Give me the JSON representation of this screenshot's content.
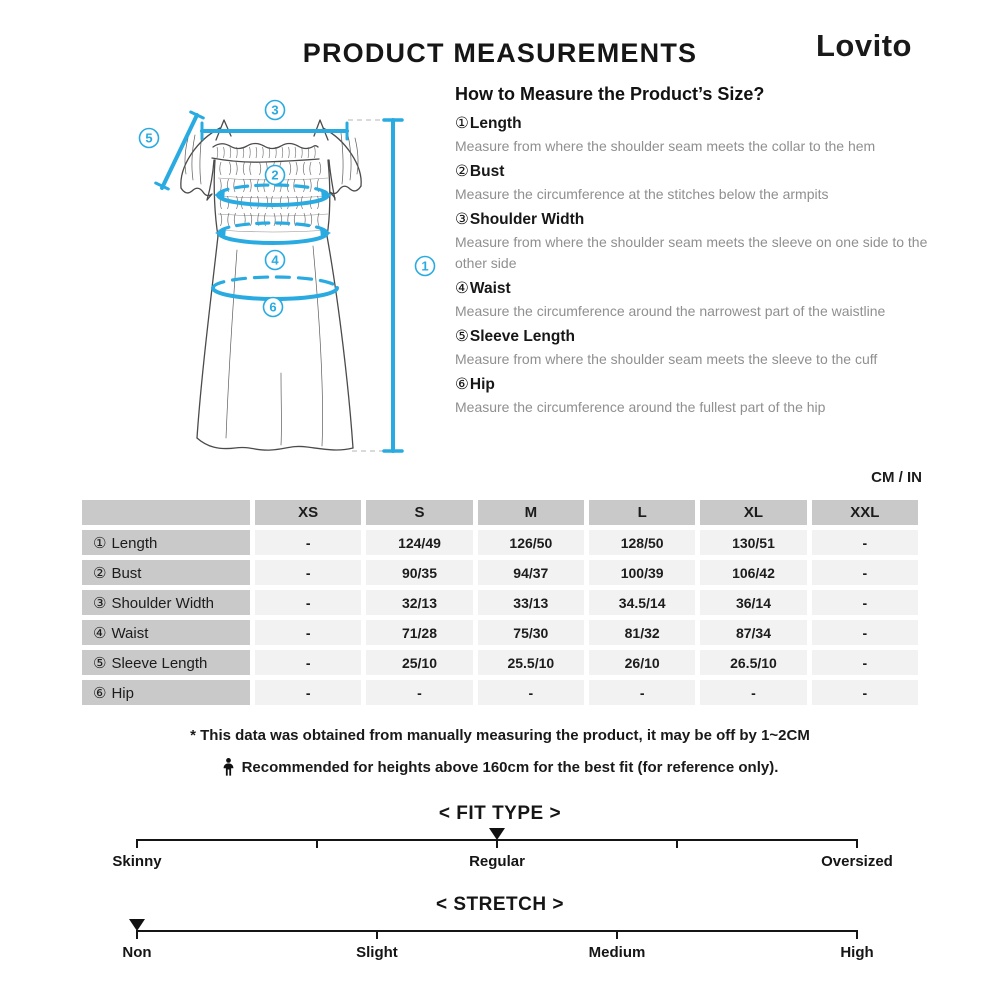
{
  "header": {
    "title": "PRODUCT MEASUREMENTS",
    "brand": "Lovito"
  },
  "how_to": {
    "heading": "How to Measure the Product’s Size?",
    "items": [
      {
        "num": "①",
        "name": "Length",
        "desc": "Measure from where the shoulder seam meets the collar to the hem"
      },
      {
        "num": "②",
        "name": "Bust",
        "desc": "Measure the circumference at the stitches below the armpits"
      },
      {
        "num": "③",
        "name": "Shoulder Width",
        "desc": "Measure from where the shoulder seam meets the sleeve on one side to the other side"
      },
      {
        "num": "④",
        "name": "Waist",
        "desc": "Measure the circumference around the narrowest part of the waistline"
      },
      {
        "num": "⑤",
        "name": "Sleeve Length",
        "desc": "Measure from where the shoulder seam meets the sleeve to the cuff"
      },
      {
        "num": "⑥",
        "name": "Hip",
        "desc": "Measure the circumference around the fullest part of the hip"
      }
    ]
  },
  "diagram": {
    "accent_color": "#29abe2",
    "length": "1",
    "bust": "2",
    "shoulder": "3",
    "waist": "4",
    "sleeve": "5",
    "hip": "6"
  },
  "table": {
    "unit_label": "CM / IN",
    "columns": [
      "XS",
      "S",
      "M",
      "L",
      "XL",
      "XXL"
    ],
    "rows": [
      {
        "num": "①",
        "label": "Length",
        "values": [
          "-",
          "124/49",
          "126/50",
          "128/50",
          "130/51",
          "-"
        ]
      },
      {
        "num": "②",
        "label": "Bust",
        "values": [
          "-",
          "90/35",
          "94/37",
          "100/39",
          "106/42",
          "-"
        ]
      },
      {
        "num": "③",
        "label": "Shoulder Width",
        "values": [
          "-",
          "32/13",
          "33/13",
          "34.5/14",
          "36/14",
          "-"
        ]
      },
      {
        "num": "④",
        "label": "Waist",
        "values": [
          "-",
          "71/28",
          "75/30",
          "81/32",
          "87/34",
          "-"
        ]
      },
      {
        "num": "⑤",
        "label": "Sleeve Length",
        "values": [
          "-",
          "25/10",
          "25.5/10",
          "26/10",
          "26.5/10",
          "-"
        ]
      },
      {
        "num": "⑥",
        "label": "Hip",
        "values": [
          "-",
          "-",
          "-",
          "-",
          "-",
          "-"
        ]
      }
    ]
  },
  "notes": {
    "note1": "* This data was obtained from manually measuring the product, it may be off by 1~2CM",
    "note2": "Recommended for heights above 160cm for the best fit (for reference only)."
  },
  "scales": [
    {
      "title": "< FIT TYPE >",
      "tick_percents": [
        0,
        25,
        50,
        75,
        100
      ],
      "indicator_percent": 50,
      "labels": [
        {
          "text": "Skinny",
          "percent": 0
        },
        {
          "text": "Regular",
          "percent": 50
        },
        {
          "text": "Oversized",
          "percent": 100
        }
      ]
    },
    {
      "title": "< STRETCH >",
      "tick_percents": [
        0,
        33.33,
        66.67,
        100
      ],
      "indicator_percent": 0,
      "labels": [
        {
          "text": "Non",
          "percent": 0
        },
        {
          "text": "Slight",
          "percent": 33.33
        },
        {
          "text": "Medium",
          "percent": 66.67
        },
        {
          "text": "High",
          "percent": 100
        }
      ]
    }
  ]
}
